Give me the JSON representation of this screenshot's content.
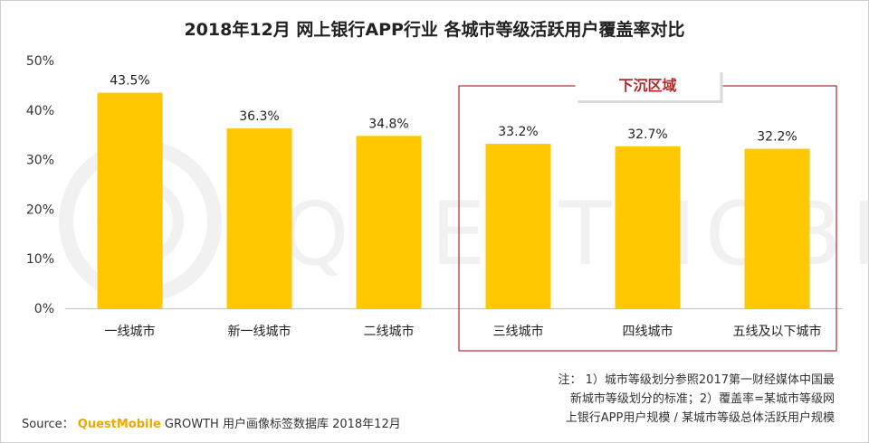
{
  "title": "2018年12月 网上银行APP行业 各城市等级活跃用户覆盖率对比",
  "chart_data": {
    "type": "bar",
    "categories": [
      "一线城市",
      "新一线城市",
      "二线城市",
      "三线城市",
      "四线城市",
      "五线及以下城市"
    ],
    "values": [
      43.5,
      36.3,
      34.8,
      33.2,
      32.7,
      32.2
    ],
    "value_labels": [
      "43.5%",
      "36.3%",
      "34.8%",
      "33.2%",
      "32.7%",
      "32.2%"
    ],
    "yticks": [
      "0%",
      "10%",
      "20%",
      "30%",
      "40%",
      "50%"
    ],
    "ylim": [
      0,
      50
    ],
    "grid": false,
    "bar_color": "#FFC800",
    "highlight": {
      "label": "下沉区域",
      "from_category": 3,
      "to_category": 5,
      "color": "#B22A2E"
    }
  },
  "watermark": "QUESTMOBILE",
  "note": {
    "lines": [
      "注： 1）城市等级划分参照2017第一财经媒体中国最",
      "新城市等级划分的标准；2）覆盖率=某城市等级网",
      "上银行APP用户规模 / 某城市等级总体活跃用户规模"
    ]
  },
  "source": {
    "label": "Source：",
    "brand": "QuestMobile",
    "product": "GROWTH 用户画像标签数据库 2018年12月"
  }
}
